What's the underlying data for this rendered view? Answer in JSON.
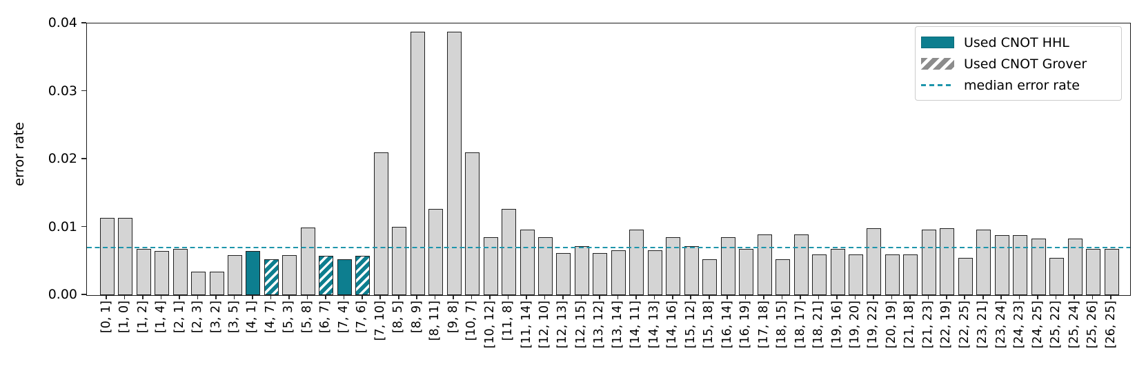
{
  "chart_data": {
    "type": "bar",
    "title": "",
    "xlabel": "",
    "ylabel": "error rate",
    "ylim": [
      0,
      0.04
    ],
    "yticks": [
      "0.00",
      "0.01",
      "0.02",
      "0.03",
      "0.04"
    ],
    "grid": false,
    "median_error_rate": 0.007,
    "categories": [
      "[0, 1]",
      "[1, 0]",
      "[1, 2]",
      "[1, 4]",
      "[2, 1]",
      "[2, 3]",
      "[3, 2]",
      "[3, 5]",
      "[4, 1]",
      "[4, 7]",
      "[5, 3]",
      "[5, 8]",
      "[6, 7]",
      "[7, 4]",
      "[7, 6]",
      "[7, 10]",
      "[8, 5]",
      "[8, 9]",
      "[8, 11]",
      "[9, 8]",
      "[10, 7]",
      "[10, 12]",
      "[11, 8]",
      "[11, 14]",
      "[12, 10]",
      "[12, 13]",
      "[12, 15]",
      "[13, 12]",
      "[13, 14]",
      "[14, 11]",
      "[14, 13]",
      "[14, 16]",
      "[15, 12]",
      "[15, 18]",
      "[16, 14]",
      "[16, 19]",
      "[17, 18]",
      "[18, 15]",
      "[18, 17]",
      "[18, 21]",
      "[19, 16]",
      "[19, 20]",
      "[19, 22]",
      "[20, 19]",
      "[21, 18]",
      "[21, 23]",
      "[22, 19]",
      "[22, 25]",
      "[23, 21]",
      "[23, 24]",
      "[24, 23]",
      "[24, 25]",
      "[25, 22]",
      "[25, 24]",
      "[25, 26]",
      "[26, 25]"
    ],
    "values": [
      0.0114,
      0.0114,
      0.0068,
      0.0065,
      0.0068,
      0.0035,
      0.0035,
      0.0059,
      0.0065,
      0.0053,
      0.0059,
      0.01,
      0.0058,
      0.0053,
      0.0058,
      0.021,
      0.0101,
      0.0388,
      0.0127,
      0.0388,
      0.021,
      0.0085,
      0.0127,
      0.0096,
      0.0085,
      0.0062,
      0.0072,
      0.0062,
      0.0066,
      0.0096,
      0.0066,
      0.0085,
      0.0072,
      0.0053,
      0.0085,
      0.0068,
      0.0089,
      0.0053,
      0.0089,
      0.006,
      0.0068,
      0.006,
      0.0099,
      0.006,
      0.006,
      0.0096,
      0.0099,
      0.0055,
      0.0096,
      0.0088,
      0.0088,
      0.0083,
      0.0055,
      0.0083,
      0.0068,
      0.0068
    ],
    "used_cnot": [
      "",
      "",
      "",
      "",
      "",
      "",
      "",
      "",
      "hhl",
      "hhl+grover",
      "",
      "",
      "hhl+grover",
      "hhl",
      "hhl+grover",
      "",
      "",
      "",
      "",
      "",
      "",
      "",
      "",
      "",
      "",
      "",
      "",
      "",
      "",
      "",
      "",
      "",
      "",
      "",
      "",
      "",
      "",
      "",
      "",
      "",
      "",
      "",
      "",
      "",
      "",
      "",
      "",
      "",
      "",
      "",
      "",
      "",
      "",
      "",
      "",
      ""
    ],
    "legend": {
      "position": "upper right",
      "items": [
        {
          "label": "Used CNOT HHL",
          "swatch": "solid-teal-patch"
        },
        {
          "label": "Used CNOT Grover",
          "swatch": "gray-hatched-patch"
        },
        {
          "label": "median error rate",
          "swatch": "teal-dashed-line"
        }
      ]
    }
  },
  "colors": {
    "hhl_teal": "#0d7e8f",
    "median_line_teal": "#1d95ab",
    "bar_gray": "#d4d4d4",
    "bar_edge": "#1f1f1f",
    "hatch_stripe_white": "#ffffff",
    "legend_hatch_gray": "#8c8c8c"
  }
}
